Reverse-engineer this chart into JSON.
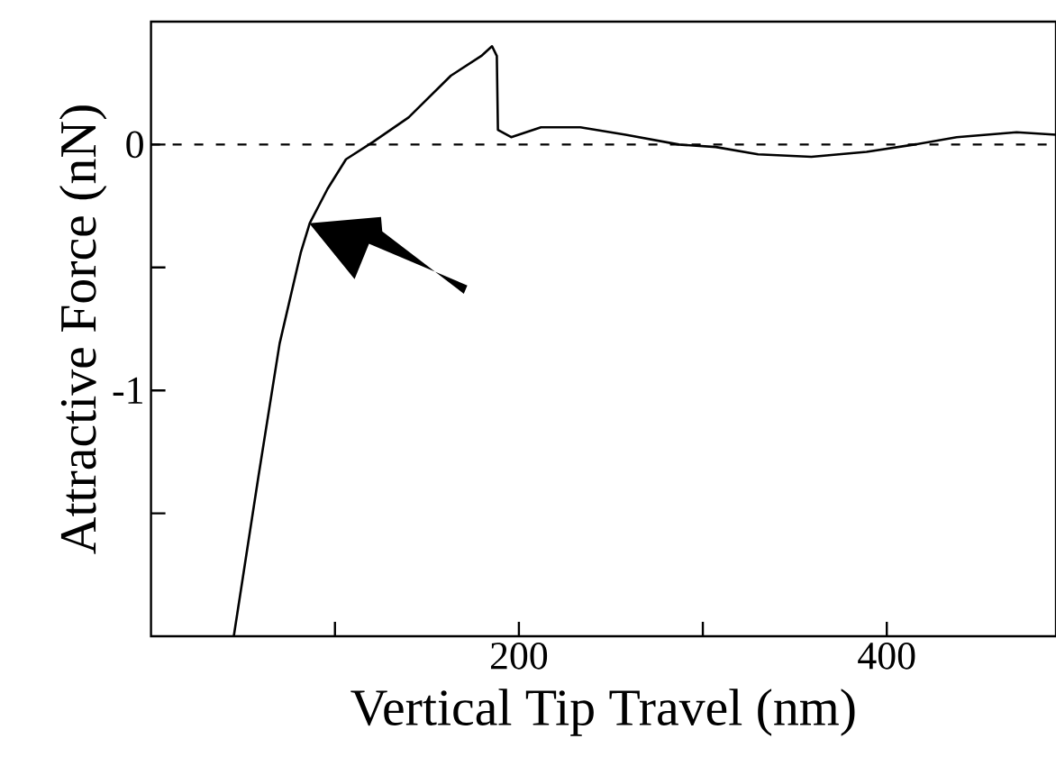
{
  "chart_data": {
    "type": "line",
    "xlabel": "Vertical Tip Travel (nm)",
    "ylabel": "Attractive Force (nN)",
    "xlim": [
      0,
      492
    ],
    "ylim": [
      -2,
      0.5
    ],
    "xticks": [
      {
        "value": 100,
        "label": null
      },
      200,
      {
        "value": 300,
        "label": null
      },
      400
    ],
    "yticks": [
      {
        "value": -1.5,
        "label": null
      },
      -1,
      {
        "value": -0.5,
        "label": null
      },
      0
    ],
    "marker": "none",
    "line_style": "solid",
    "grid": false,
    "legend": false,
    "ref_lines": [
      {
        "axis": "y",
        "value": 0,
        "line_style": "dashed",
        "color": "#000000"
      }
    ],
    "series": [
      {
        "color": "#000000",
        "x": [
          45,
          58.4,
          69.9,
          81.4,
          86.3,
          96,
          106,
          120.6,
          140,
          163,
          179.5,
          185.4,
          188,
          188.6,
          195.8,
          212,
          233.4,
          258,
          287,
          307,
          330,
          359,
          389,
          415,
          438,
          470.6,
          492
        ],
        "values": [
          -2.0,
          -1.35,
          -0.81,
          -0.44,
          -0.32,
          -0.18,
          -0.06,
          0.01,
          0.11,
          0.28,
          0.36,
          0.4,
          0.36,
          0.06,
          0.03,
          0.07,
          0.07,
          0.04,
          0.0,
          -0.01,
          -0.04,
          -0.05,
          -0.03,
          0.0,
          0.03,
          0.05,
          0.04
        ]
      }
    ]
  }
}
